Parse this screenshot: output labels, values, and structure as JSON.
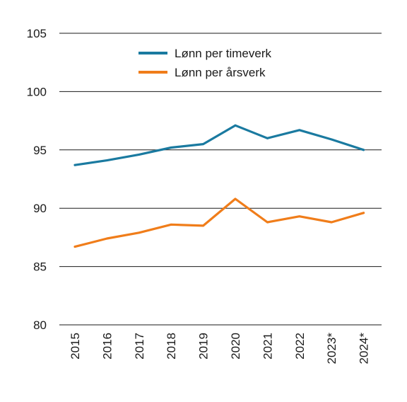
{
  "chart_data": {
    "type": "line",
    "title": "",
    "xlabel": "",
    "ylabel": "",
    "x": [
      "2015",
      "2016",
      "2017",
      "2018",
      "2019",
      "2020",
      "2021",
      "2022",
      "2023*",
      "2024*"
    ],
    "ylim": [
      80,
      105
    ],
    "yticks": [
      80,
      85,
      90,
      95,
      100,
      105
    ],
    "grid": true,
    "legend_position": "top-center",
    "series": [
      {
        "name": "Lønn per timeverk",
        "color": "#1a7aa0",
        "values": [
          93.7,
          94.1,
          94.6,
          95.2,
          95.5,
          97.1,
          96.0,
          96.7,
          95.9,
          95.0
        ]
      },
      {
        "name": "Lønn per årsverk",
        "color": "#f07d1a",
        "values": [
          86.7,
          87.4,
          87.9,
          88.6,
          88.5,
          90.8,
          88.8,
          89.3,
          88.8,
          89.6
        ]
      }
    ]
  }
}
